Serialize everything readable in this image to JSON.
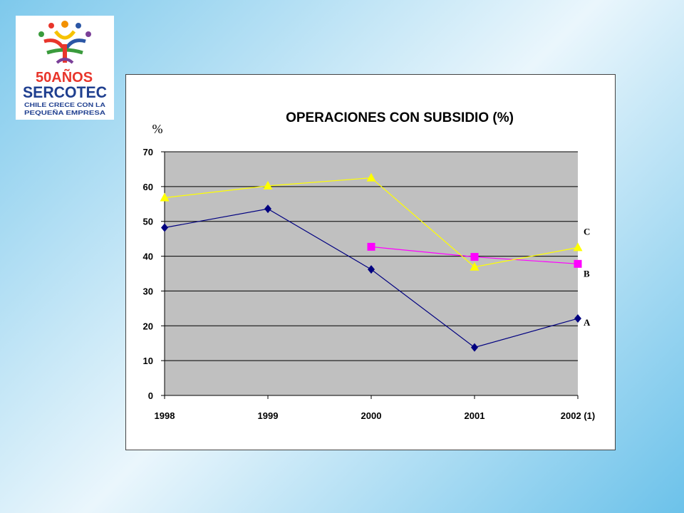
{
  "logo": {
    "anniversary": "50AÑOS",
    "brand": "SERCOTEC",
    "tagline_1": "CHILE CRECE CON LA",
    "tagline_2": "PEQUEÑA EMPRESA",
    "colors": [
      "#e8352b",
      "#f29100",
      "#3a9b3c",
      "#2b56a5",
      "#7a3f98",
      "#f6c200"
    ]
  },
  "chart_data": {
    "type": "line",
    "title": "OPERACIONES CON SUBSIDIO (%)",
    "ylabel": "%",
    "xlabel": "",
    "categories": [
      "1998",
      "1999",
      "2000",
      "2001",
      "2002 (1)"
    ],
    "ylim": [
      0,
      70
    ],
    "yticks": [
      "0",
      "10",
      "20",
      "30",
      "40",
      "50",
      "60",
      "70"
    ],
    "grid": true,
    "plot_background": "#c0c0c0",
    "series": [
      {
        "name": "A",
        "color": "#000080",
        "marker": "diamond",
        "values": [
          48.2,
          53.6,
          36.2,
          13.8,
          22.1
        ]
      },
      {
        "name": "B",
        "color": "#ff00ff",
        "marker": "square",
        "values": [
          null,
          null,
          42.7,
          39.8,
          37.8
        ]
      },
      {
        "name": "C",
        "color": "#ffff00",
        "marker": "triangle",
        "values": [
          56.8,
          60.2,
          62.5,
          36.9,
          42.5
        ]
      }
    ]
  }
}
